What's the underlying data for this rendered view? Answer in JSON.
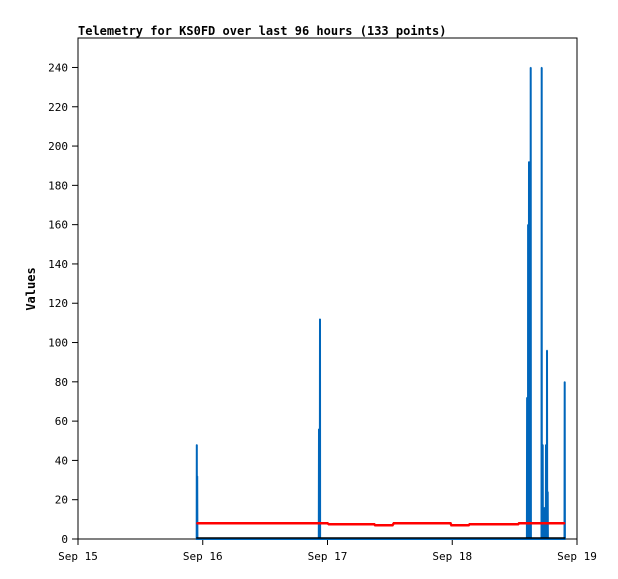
{
  "chart_data": {
    "type": "line",
    "title": "Telemetry for KS0FD over last 96 hours (133 points)",
    "ylabel": "Values",
    "xlabel": "",
    "ylim": [
      0,
      255
    ],
    "xlim": [
      "Sep 15 00:00",
      "Sep 19 00:00"
    ],
    "x_tick_labels": [
      "Sep 15",
      "Sep 16",
      "Sep 17",
      "Sep 18",
      "Sep 19"
    ],
    "y_ticks": [
      0,
      20,
      40,
      60,
      80,
      100,
      120,
      140,
      160,
      180,
      200,
      220,
      240
    ],
    "grid": false,
    "series": [
      {
        "color": "#0066bb",
        "points": [
          [
            "Sep 15 22:50",
            0
          ],
          [
            "Sep 15 22:51",
            48
          ],
          [
            "Sep 15 22:53",
            0
          ],
          [
            "Sep 15 22:55",
            0
          ],
          [
            "Sep 15 22:56",
            32
          ],
          [
            "Sep 15 22:58",
            0
          ],
          [
            "Sep 16 22:20",
            0
          ],
          [
            "Sep 16 22:22",
            56
          ],
          [
            "Sep 16 22:24",
            0
          ],
          [
            "Sep 16 22:31",
            0
          ],
          [
            "Sep 16 22:33",
            112
          ],
          [
            "Sep 16 22:35",
            0
          ],
          [
            "Sep 18 14:22",
            0
          ],
          [
            "Sep 18 14:24",
            72
          ],
          [
            "Sep 18 14:26",
            0
          ],
          [
            "Sep 18 14:34",
            0
          ],
          [
            "Sep 18 14:36",
            160
          ],
          [
            "Sep 18 14:38",
            0
          ],
          [
            "Sep 18 14:44",
            0
          ],
          [
            "Sep 18 14:46",
            192
          ],
          [
            "Sep 18 14:48",
            0
          ],
          [
            "Sep 18 15:04",
            0
          ],
          [
            "Sep 18 15:06",
            240
          ],
          [
            "Sep 18 15:08",
            0
          ],
          [
            "Sep 18 17:10",
            0
          ],
          [
            "Sep 18 17:12",
            240
          ],
          [
            "Sep 18 17:14",
            0
          ],
          [
            "Sep 18 17:22",
            0
          ],
          [
            "Sep 18 17:24",
            48
          ],
          [
            "Sep 18 17:26",
            0
          ],
          [
            "Sep 18 17:40",
            0
          ],
          [
            "Sep 18 17:42",
            16
          ],
          [
            "Sep 18 17:44",
            0
          ],
          [
            "Sep 18 18:00",
            0
          ],
          [
            "Sep 18 18:02",
            48
          ],
          [
            "Sep 18 18:04",
            0
          ],
          [
            "Sep 18 18:12",
            0
          ],
          [
            "Sep 18 18:14",
            96
          ],
          [
            "Sep 18 18:16",
            0
          ],
          [
            "Sep 18 18:20",
            0
          ],
          [
            "Sep 18 18:22",
            24
          ],
          [
            "Sep 18 18:24",
            0
          ],
          [
            "Sep 18 21:36",
            0
          ],
          [
            "Sep 18 21:38",
            80
          ],
          [
            "Sep 18 21:40",
            0
          ]
        ]
      },
      {
        "color": "#ff0000",
        "points": [
          [
            "Sep 15 22:50",
            8
          ],
          [
            "Sep 16 16:00",
            8
          ],
          [
            "Sep 17 00:00",
            8
          ],
          [
            "Sep 17 00:15",
            7.5
          ],
          [
            "Sep 17 09:00",
            7.5
          ],
          [
            "Sep 17 09:10",
            7
          ],
          [
            "Sep 17 12:30",
            7
          ],
          [
            "Sep 17 12:45",
            8
          ],
          [
            "Sep 17 23:40",
            8
          ],
          [
            "Sep 17 23:50",
            7
          ],
          [
            "Sep 18 03:10",
            7
          ],
          [
            "Sep 18 03:20",
            7.5
          ],
          [
            "Sep 18 12:40",
            7.5
          ],
          [
            "Sep 18 12:50",
            8
          ],
          [
            "Sep 18 21:40",
            8
          ]
        ]
      },
      {
        "color": "#000000",
        "points": [
          [
            "Sep 15 22:50",
            0.5
          ],
          [
            "Sep 18 21:40",
            0.5
          ]
        ]
      }
    ]
  }
}
